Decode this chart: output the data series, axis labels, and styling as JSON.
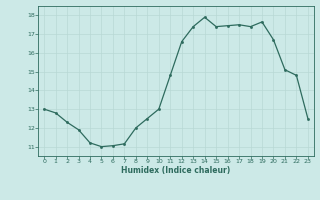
{
  "x": [
    0,
    1,
    2,
    3,
    4,
    5,
    6,
    7,
    8,
    9,
    10,
    11,
    12,
    13,
    14,
    15,
    16,
    17,
    18,
    19,
    20,
    21,
    22,
    23
  ],
  "y": [
    13.0,
    12.8,
    12.3,
    11.9,
    11.2,
    11.0,
    11.05,
    11.15,
    12.0,
    12.5,
    13.0,
    14.8,
    16.6,
    17.4,
    17.9,
    17.4,
    17.45,
    17.5,
    17.4,
    17.65,
    16.7,
    15.1,
    14.8,
    12.5
  ],
  "xlabel": "Humidex (Indice chaleur)",
  "xlim": [
    -0.5,
    23.5
  ],
  "ylim": [
    10.5,
    18.5
  ],
  "yticks": [
    11,
    12,
    13,
    14,
    15,
    16,
    17,
    18
  ],
  "xticks": [
    0,
    1,
    2,
    3,
    4,
    5,
    6,
    7,
    8,
    9,
    10,
    11,
    12,
    13,
    14,
    15,
    16,
    17,
    18,
    19,
    20,
    21,
    22,
    23
  ],
  "line_color": "#2e6b5e",
  "marker_color": "#2e6b5e",
  "bg_color": "#cce9e7",
  "grid_color": "#b8d8d5",
  "label_color": "#2e6b5e",
  "tick_color": "#2e6b5e",
  "spine_color": "#2e6b5e"
}
